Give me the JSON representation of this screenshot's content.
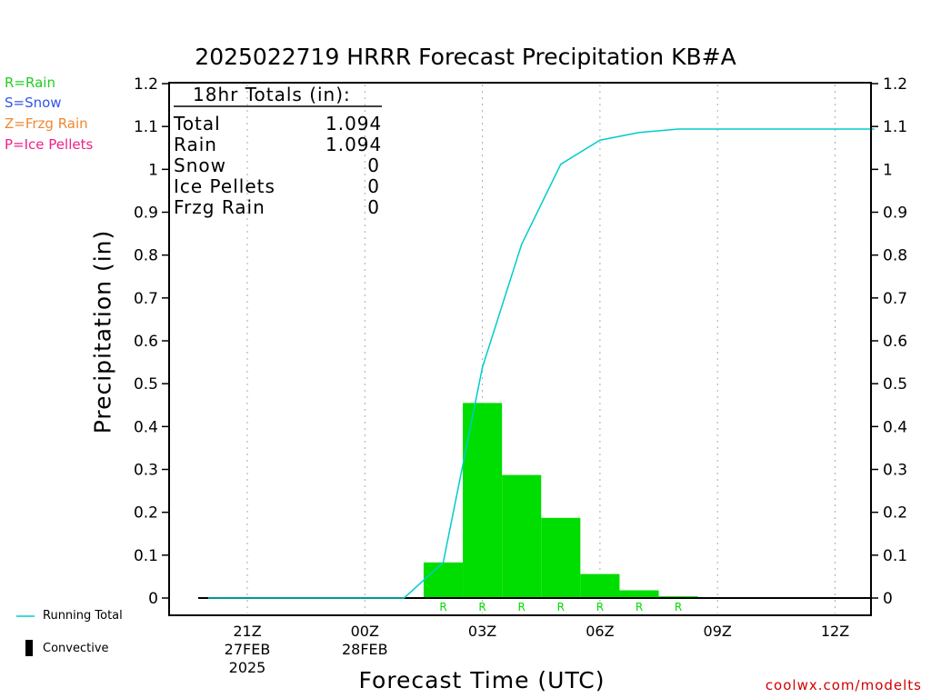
{
  "chart_data": {
    "type": "bar",
    "title": "2025022719 HRRR Forecast Precipitation KB#A",
    "xlabel": "Forecast Time (UTC)",
    "ylabel": "Precipitation (in)",
    "ylim": [
      0,
      1.2
    ],
    "y_ticks": [
      "0",
      "0.1",
      "0.2",
      "0.3",
      "0.4",
      "0.5",
      "0.6",
      "0.7",
      "0.8",
      "0.9",
      "1",
      "1.1",
      "1.2"
    ],
    "x_ticks": [
      {
        "label": "21Z",
        "date": "27FEB",
        "year": "2025"
      },
      {
        "label": "00Z",
        "date": "28FEB",
        "year": ""
      },
      {
        "label": "03Z",
        "date": "",
        "year": ""
      },
      {
        "label": "06Z",
        "date": "",
        "year": ""
      },
      {
        "label": "09Z",
        "date": "",
        "year": ""
      },
      {
        "label": "12Z",
        "date": "",
        "year": ""
      }
    ],
    "grid": "vertical dotted at x ticks",
    "categories": [
      "02Z",
      "03Z",
      "04Z",
      "05Z",
      "06Z",
      "07Z",
      "08Z"
    ],
    "series": [
      {
        "name": "Rain",
        "color": "#00dd00",
        "values": [
          0.083,
          0.455,
          0.287,
          0.187,
          0.056,
          0.018,
          0.004
        ],
        "type_labels": [
          "R",
          "R",
          "R",
          "R",
          "R",
          "R",
          "R"
        ]
      },
      {
        "name": "Running Total",
        "type": "line",
        "color": "#00cccc",
        "x": [
          "20Z",
          "21Z",
          "22Z",
          "23Z",
          "00Z",
          "01Z",
          "02Z",
          "03Z",
          "04Z",
          "05Z",
          "06Z",
          "07Z",
          "08Z",
          "09Z",
          "10Z",
          "11Z",
          "12Z",
          "13Z"
        ],
        "values": [
          0,
          0,
          0,
          0,
          0,
          0,
          0.083,
          0.538,
          0.825,
          1.012,
          1.068,
          1.086,
          1.094,
          1.094,
          1.094,
          1.094,
          1.094,
          1.094
        ]
      }
    ],
    "totals_box": {
      "title": "18hr Totals (in):",
      "rows": [
        {
          "name": "Total",
          "value": "1.094"
        },
        {
          "name": "Rain",
          "value": "1.094"
        },
        {
          "name": "Snow",
          "value": "0"
        },
        {
          "name": "Ice Pellets",
          "value": "0"
        },
        {
          "name": "Frzg Rain",
          "value": "0"
        }
      ]
    }
  },
  "type_legend": [
    {
      "text": "R=Rain",
      "color": "#22cc22"
    },
    {
      "text": "S=Snow",
      "color": "#3355ee"
    },
    {
      "text": "Z=Frzg Rain",
      "color": "#ee8833"
    },
    {
      "text": "P=Ice Pellets",
      "color": "#ee2288"
    }
  ],
  "bottom_legend": {
    "running_total": "Running Total",
    "convective": "Convective"
  },
  "credit": "coolwx.com/modelts"
}
